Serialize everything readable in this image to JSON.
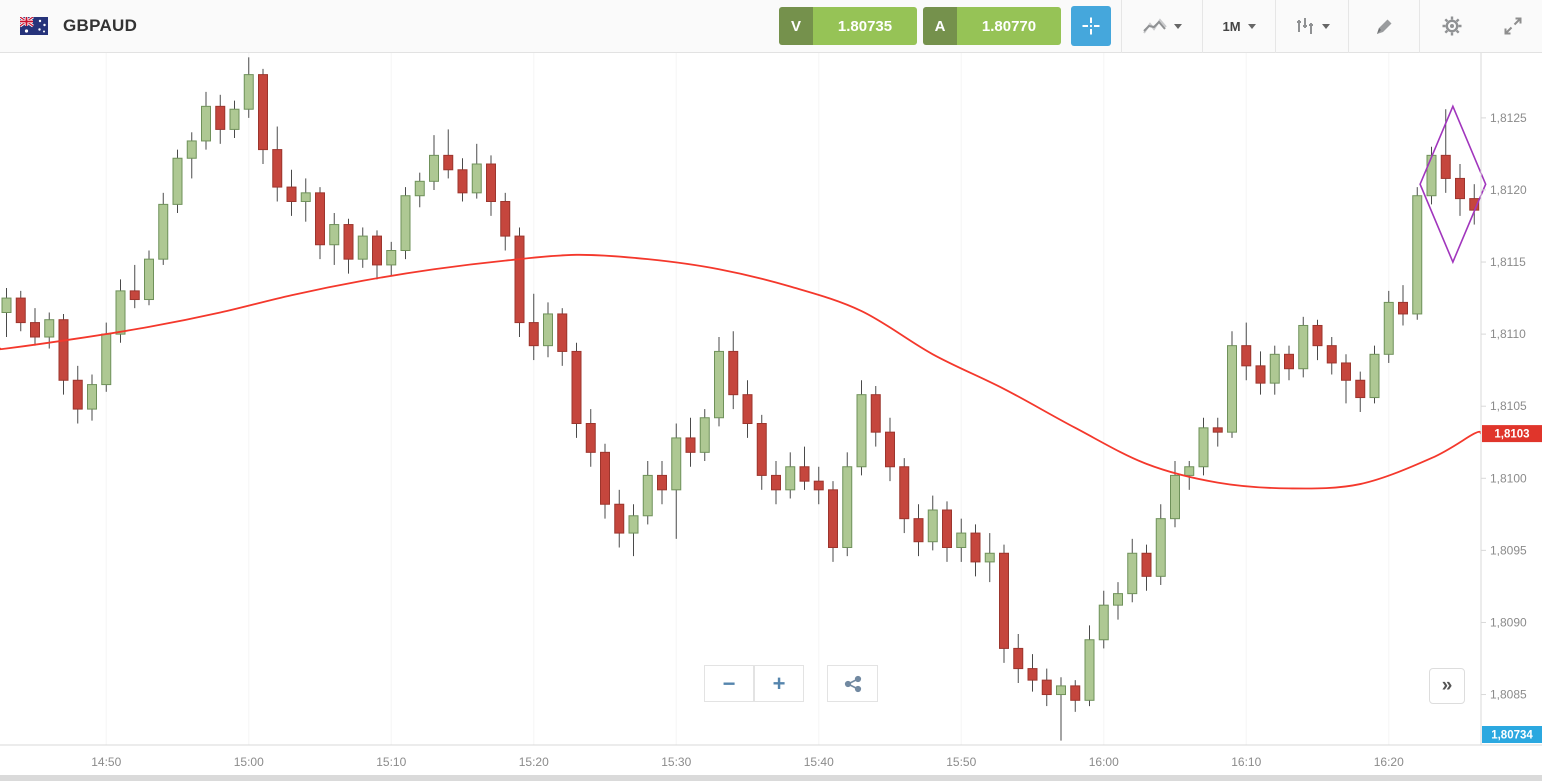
{
  "window": {
    "title": "GBPAUD"
  },
  "colors": {
    "trade_letter_bg": "#75914c",
    "trade_price_bg": "#96c356",
    "crosshair_bg": "#45a7dc",
    "candle_up_fill": "#aec893",
    "candle_up_stroke": "#6f915a",
    "candle_down_fill": "#c5463d",
    "candle_down_stroke": "#9c352d",
    "wick": "#4a4a4a",
    "ma_line": "#f4382c",
    "axis_text": "#8b8b8b",
    "axis_line": "#d8d8d8",
    "grid_line": "#f5f5f5",
    "tag_ma_bg": "#e0352b",
    "tag_price_bg": "#2ba8e0",
    "drawing": "#a136bd"
  },
  "toolbar": {
    "instrument": "GBPAUD",
    "sell": {
      "label": "V",
      "price": "1.80735"
    },
    "buy": {
      "label": "A",
      "price": "1.80770"
    },
    "timeframe": "1M"
  },
  "footer": {
    "zoom_out": "−",
    "zoom_in": "+",
    "collapse": "»"
  },
  "chart_data": {
    "type": "candlestick",
    "symbol": "GBPAUD",
    "timeframe": "1M",
    "ylim": [
      1.80815,
      1.81295
    ],
    "x_ticks": [
      "14:50",
      "15:00",
      "15:10",
      "15:20",
      "15:30",
      "15:40",
      "15:50",
      "16:00",
      "16:10",
      "16:20"
    ],
    "y_ticks": [
      {
        "value": 1.8125,
        "label": "1,8125"
      },
      {
        "value": 1.812,
        "label": "1,8120"
      },
      {
        "value": 1.8115,
        "label": "1,8115"
      },
      {
        "value": 1.811,
        "label": "1,8110"
      },
      {
        "value": 1.8105,
        "label": "1,8105"
      },
      {
        "value": 1.81,
        "label": "1,8100"
      },
      {
        "value": 1.8095,
        "label": "1,8095"
      },
      {
        "value": 1.809,
        "label": "1,8090"
      },
      {
        "value": 1.8085,
        "label": "1,8085"
      }
    ],
    "candles": [
      [
        "14:43",
        1.81115,
        1.81132,
        1.81098,
        1.81125
      ],
      [
        "14:44",
        1.81125,
        1.8113,
        1.81102,
        1.81108
      ],
      [
        "14:45",
        1.81108,
        1.81118,
        1.81092,
        1.81098
      ],
      [
        "14:46",
        1.81098,
        1.81115,
        1.8109,
        1.8111
      ],
      [
        "14:47",
        1.8111,
        1.81114,
        1.81058,
        1.81068
      ],
      [
        "14:48",
        1.81068,
        1.81078,
        1.81038,
        1.81048
      ],
      [
        "14:49",
        1.81048,
        1.81072,
        1.8104,
        1.81065
      ],
      [
        "14:50",
        1.81065,
        1.81108,
        1.8106,
        1.811
      ],
      [
        "14:51",
        1.811,
        1.81138,
        1.81094,
        1.8113
      ],
      [
        "14:52",
        1.8113,
        1.81148,
        1.81118,
        1.81124
      ],
      [
        "14:53",
        1.81124,
        1.81158,
        1.8112,
        1.81152
      ],
      [
        "14:54",
        1.81152,
        1.81198,
        1.81148,
        1.8119
      ],
      [
        "14:55",
        1.8119,
        1.81228,
        1.81184,
        1.81222
      ],
      [
        "14:56",
        1.81222,
        1.8124,
        1.81208,
        1.81234
      ],
      [
        "14:57",
        1.81234,
        1.81268,
        1.81228,
        1.81258
      ],
      [
        "14:58",
        1.81258,
        1.81266,
        1.81232,
        1.81242
      ],
      [
        "14:59",
        1.81242,
        1.81262,
        1.81236,
        1.81256
      ],
      [
        "15:00",
        1.81256,
        1.81292,
        1.8125,
        1.8128
      ],
      [
        "15:01",
        1.8128,
        1.81284,
        1.81218,
        1.81228
      ],
      [
        "15:02",
        1.81228,
        1.81244,
        1.81192,
        1.81202
      ],
      [
        "15:03",
        1.81202,
        1.81214,
        1.81182,
        1.81192
      ],
      [
        "15:04",
        1.81192,
        1.81208,
        1.81178,
        1.81198
      ],
      [
        "15:05",
        1.81198,
        1.81202,
        1.81152,
        1.81162
      ],
      [
        "15:06",
        1.81162,
        1.81184,
        1.81148,
        1.81176
      ],
      [
        "15:07",
        1.81176,
        1.8118,
        1.81142,
        1.81152
      ],
      [
        "15:08",
        1.81152,
        1.81174,
        1.81146,
        1.81168
      ],
      [
        "15:09",
        1.81168,
        1.81172,
        1.81138,
        1.81148
      ],
      [
        "15:10",
        1.81148,
        1.81164,
        1.8114,
        1.81158
      ],
      [
        "15:11",
        1.81158,
        1.81202,
        1.81152,
        1.81196
      ],
      [
        "15:12",
        1.81196,
        1.81212,
        1.81188,
        1.81206
      ],
      [
        "15:13",
        1.81206,
        1.81238,
        1.812,
        1.81224
      ],
      [
        "15:14",
        1.81224,
        1.81242,
        1.81208,
        1.81214
      ],
      [
        "15:15",
        1.81214,
        1.81222,
        1.81192,
        1.81198
      ],
      [
        "15:16",
        1.81198,
        1.81232,
        1.81194,
        1.81218
      ],
      [
        "15:17",
        1.81218,
        1.81224,
        1.81182,
        1.81192
      ],
      [
        "15:18",
        1.81192,
        1.81198,
        1.81158,
        1.81168
      ],
      [
        "15:19",
        1.81168,
        1.81174,
        1.81098,
        1.81108
      ],
      [
        "15:20",
        1.81108,
        1.81128,
        1.81082,
        1.81092
      ],
      [
        "15:21",
        1.81092,
        1.81122,
        1.81084,
        1.81114
      ],
      [
        "15:22",
        1.81114,
        1.81118,
        1.81078,
        1.81088
      ],
      [
        "15:23",
        1.81088,
        1.81094,
        1.81028,
        1.81038
      ],
      [
        "15:24",
        1.81038,
        1.81048,
        1.81008,
        1.81018
      ],
      [
        "15:25",
        1.81018,
        1.81024,
        1.80972,
        1.80982
      ],
      [
        "15:26",
        1.80982,
        1.80992,
        1.80952,
        1.80962
      ],
      [
        "15:27",
        1.80962,
        1.80982,
        1.80946,
        1.80974
      ],
      [
        "15:28",
        1.80974,
        1.81012,
        1.80968,
        1.81002
      ],
      [
        "15:29",
        1.81002,
        1.81012,
        1.80982,
        1.80992
      ],
      [
        "15:30",
        1.80992,
        1.81038,
        1.80958,
        1.81028
      ],
      [
        "15:31",
        1.81028,
        1.81042,
        1.81008,
        1.81018
      ],
      [
        "15:32",
        1.81018,
        1.81048,
        1.81012,
        1.81042
      ],
      [
        "15:33",
        1.81042,
        1.81098,
        1.81036,
        1.81088
      ],
      [
        "15:34",
        1.81088,
        1.81102,
        1.81048,
        1.81058
      ],
      [
        "15:35",
        1.81058,
        1.81068,
        1.81028,
        1.81038
      ],
      [
        "15:36",
        1.81038,
        1.81044,
        1.80992,
        1.81002
      ],
      [
        "15:37",
        1.81002,
        1.81012,
        1.80982,
        1.80992
      ],
      [
        "15:38",
        1.80992,
        1.81018,
        1.80986,
        1.81008
      ],
      [
        "15:39",
        1.81008,
        1.81022,
        1.80992,
        1.80998
      ],
      [
        "15:40",
        1.80998,
        1.81008,
        1.80982,
        1.80992
      ],
      [
        "15:41",
        1.80992,
        1.80998,
        1.80942,
        1.80952
      ],
      [
        "15:42",
        1.80952,
        1.81018,
        1.80946,
        1.81008
      ],
      [
        "15:43",
        1.81008,
        1.81068,
        1.81002,
        1.81058
      ],
      [
        "15:44",
        1.81058,
        1.81064,
        1.81022,
        1.81032
      ],
      [
        "15:45",
        1.81032,
        1.81042,
        1.80998,
        1.81008
      ],
      [
        "15:46",
        1.81008,
        1.81014,
        1.80962,
        1.80972
      ],
      [
        "15:47",
        1.80972,
        1.80982,
        1.80946,
        1.80956
      ],
      [
        "15:48",
        1.80956,
        1.80988,
        1.8095,
        1.80978
      ],
      [
        "15:49",
        1.80978,
        1.80984,
        1.80942,
        1.80952
      ],
      [
        "15:50",
        1.80952,
        1.80972,
        1.80942,
        1.80962
      ],
      [
        "15:51",
        1.80962,
        1.80968,
        1.80932,
        1.80942
      ],
      [
        "15:52",
        1.80942,
        1.80962,
        1.80928,
        1.80948
      ],
      [
        "15:53",
        1.80948,
        1.80954,
        1.80872,
        1.80882
      ],
      [
        "15:54",
        1.80882,
        1.80892,
        1.80858,
        1.80868
      ],
      [
        "15:55",
        1.80868,
        1.80878,
        1.80852,
        1.8086
      ],
      [
        "15:56",
        1.8086,
        1.80868,
        1.80842,
        1.8085
      ],
      [
        "15:57",
        1.8085,
        1.80862,
        1.80818,
        1.80856
      ],
      [
        "15:58",
        1.80856,
        1.8086,
        1.80838,
        1.80846
      ],
      [
        "15:59",
        1.80846,
        1.80898,
        1.80842,
        1.80888
      ],
      [
        "16:00",
        1.80888,
        1.80922,
        1.80882,
        1.80912
      ],
      [
        "16:01",
        1.80912,
        1.80928,
        1.80902,
        1.8092
      ],
      [
        "16:02",
        1.8092,
        1.80958,
        1.80914,
        1.80948
      ],
      [
        "16:03",
        1.80948,
        1.80954,
        1.80922,
        1.80932
      ],
      [
        "16:04",
        1.80932,
        1.80982,
        1.80926,
        1.80972
      ],
      [
        "16:05",
        1.80972,
        1.81012,
        1.80966,
        1.81002
      ],
      [
        "16:06",
        1.81002,
        1.81012,
        1.80992,
        1.81008
      ],
      [
        "16:07",
        1.81008,
        1.81042,
        1.81002,
        1.81035
      ],
      [
        "16:08",
        1.81035,
        1.81042,
        1.81022,
        1.81032
      ],
      [
        "16:09",
        1.81032,
        1.81102,
        1.81028,
        1.81092
      ],
      [
        "16:10",
        1.81092,
        1.81108,
        1.81068,
        1.81078
      ],
      [
        "16:11",
        1.81078,
        1.81088,
        1.81058,
        1.81066
      ],
      [
        "16:12",
        1.81066,
        1.81092,
        1.81058,
        1.81086
      ],
      [
        "16:13",
        1.81086,
        1.81092,
        1.81068,
        1.81076
      ],
      [
        "16:14",
        1.81076,
        1.81112,
        1.8107,
        1.81106
      ],
      [
        "16:15",
        1.81106,
        1.8111,
        1.81082,
        1.81092
      ],
      [
        "16:16",
        1.81092,
        1.81098,
        1.81072,
        1.8108
      ],
      [
        "16:17",
        1.8108,
        1.81086,
        1.81052,
        1.81068
      ],
      [
        "16:18",
        1.81068,
        1.81074,
        1.81046,
        1.81056
      ],
      [
        "16:19",
        1.81056,
        1.81092,
        1.81052,
        1.81086
      ],
      [
        "16:20",
        1.81086,
        1.8113,
        1.8108,
        1.81122
      ],
      [
        "16:21",
        1.81122,
        1.81134,
        1.81106,
        1.81114
      ],
      [
        "16:22",
        1.81114,
        1.81202,
        1.8111,
        1.81196
      ],
      [
        "16:23",
        1.81196,
        1.8123,
        1.8119,
        1.81224
      ],
      [
        "16:24",
        1.81224,
        1.81256,
        1.81198,
        1.81208
      ],
      [
        "16:25",
        1.81208,
        1.81218,
        1.81182,
        1.81194
      ],
      [
        "16:26",
        1.81194,
        1.81204,
        1.81176,
        1.81186
      ]
    ],
    "ma_points": [
      [
        "14:43",
        1.8109
      ],
      [
        "14:48",
        1.81097
      ],
      [
        "14:53",
        1.81105
      ],
      [
        "14:58",
        1.81115
      ],
      [
        "15:03",
        1.81127
      ],
      [
        "15:08",
        1.81137
      ],
      [
        "15:13",
        1.81145
      ],
      [
        "15:18",
        1.81151
      ],
      [
        "15:23",
        1.81155
      ],
      [
        "15:28",
        1.81152
      ],
      [
        "15:33",
        1.81145
      ],
      [
        "15:38",
        1.81133
      ],
      [
        "15:43",
        1.81116
      ],
      [
        "15:48",
        1.81086
      ],
      [
        "15:53",
        1.81062
      ],
      [
        "15:58",
        1.81035
      ],
      [
        "16:03",
        1.8101
      ],
      [
        "16:08",
        1.80997
      ],
      [
        "16:13",
        1.80993
      ],
      [
        "16:18",
        1.80996
      ],
      [
        "16:23",
        1.81014
      ],
      [
        "16:26",
        1.81031
      ]
    ],
    "price_tags": {
      "ma": {
        "text": "1,8103",
        "value": 1.81031
      },
      "current": {
        "text": "1,80734",
        "pinned": "bottom"
      }
    },
    "drawings": [
      {
        "shape": "diamond",
        "center_time": "16:24",
        "price_top": 1.81258,
        "price_bottom": 1.8115,
        "width_minutes": 4.6
      }
    ]
  }
}
